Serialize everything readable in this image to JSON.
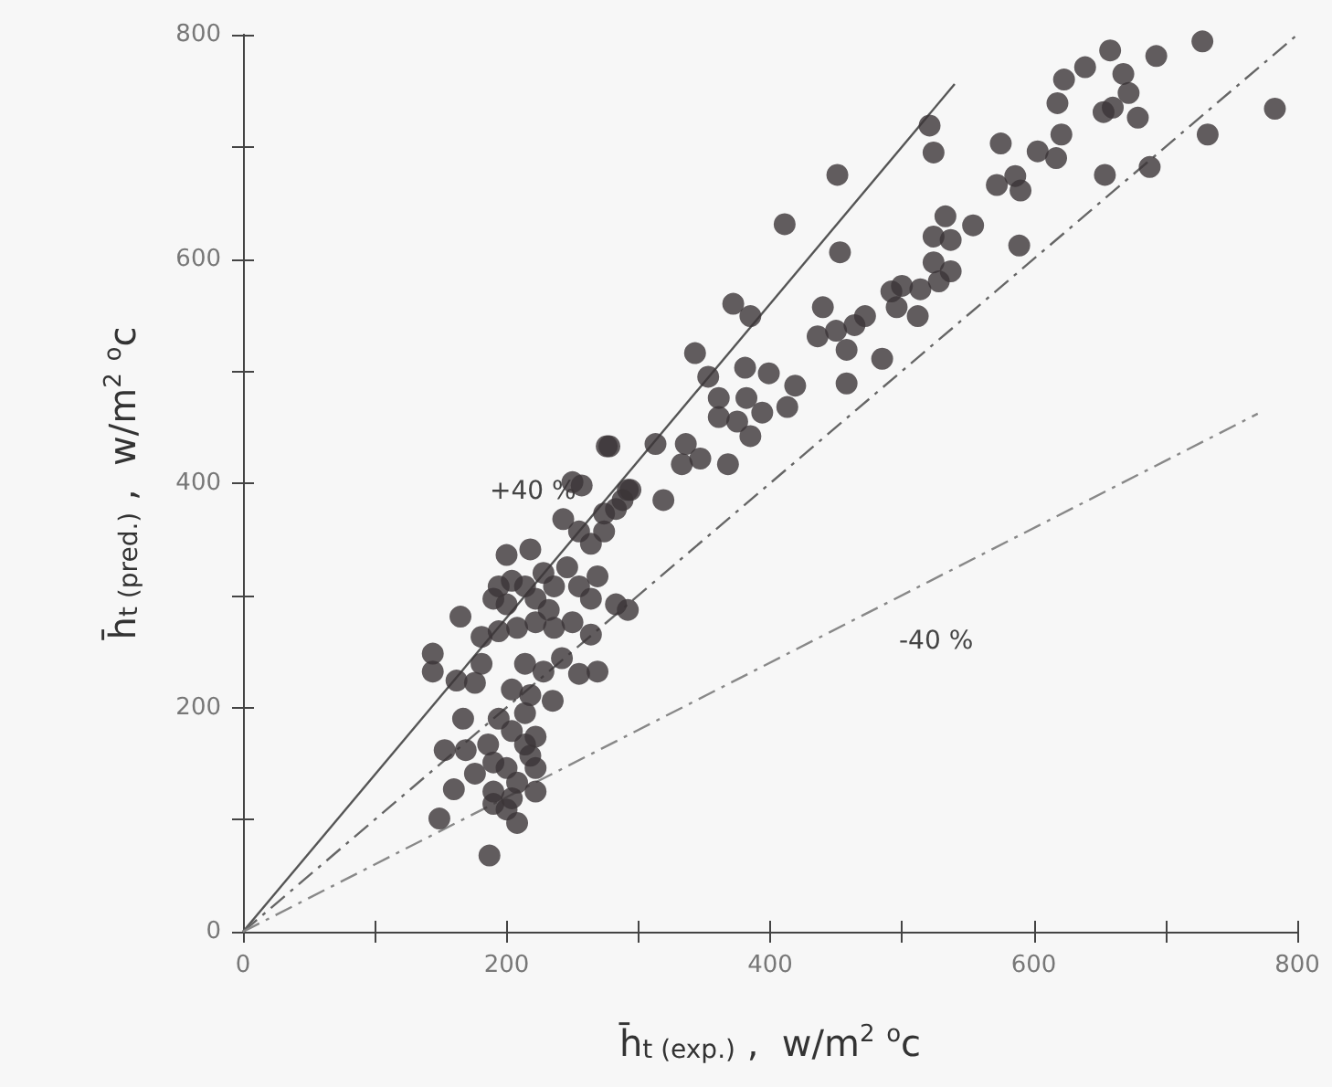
{
  "chart_data": {
    "type": "scatter",
    "xlabel": "h̄$_{t (exp.)}$ ,  w/m$^{2}$ $^{o}$c",
    "ylabel": "h̄$_{t (pred.)}$ ,  w/m$^{2}$ $^{o}$c",
    "xlim": [
      0,
      800
    ],
    "ylim": [
      0,
      800
    ],
    "xticks": [
      0,
      {
        "value": 100,
        "label": null
      },
      200,
      {
        "value": 300,
        "label": null
      },
      400,
      {
        "value": 500,
        "label": null
      },
      600,
      {
        "value": 700,
        "label": null
      },
      800
    ],
    "yticks": [
      0,
      {
        "value": 100,
        "label": null
      },
      200,
      {
        "value": 300,
        "label": null
      },
      400,
      {
        "value": 500,
        "label": null
      },
      600,
      {
        "value": 700,
        "label": null
      },
      800
    ],
    "annotations": [
      "+40 %",
      "-40 %"
    ],
    "series": [
      {
        "color": "#3b3537",
        "marker": "circle",
        "x": [
          276,
          250,
          257,
          243,
          274,
          288,
          294,
          255,
          264,
          274,
          200,
          218,
          194,
          204,
          214,
          228,
          236,
          246,
          269,
          190,
          200,
          222,
          232,
          255,
          264,
          165,
          181,
          194,
          208,
          222,
          236,
          250,
          264,
          283,
          292,
          144,
          144,
          162,
          176,
          181,
          214,
          228,
          242,
          255,
          269,
          204,
          218,
          214,
          235,
          167,
          194,
          204,
          214,
          222,
          153,
          169,
          186,
          190,
          200,
          218,
          222,
          160,
          176,
          190,
          208,
          222,
          149,
          190,
          200,
          208,
          204,
          187,
          521,
          524,
          575,
          572,
          451,
          411,
          453,
          533,
          554,
          524,
          537,
          524,
          537,
          528,
          514,
          500,
          492,
          496,
          512,
          440,
          436,
          450,
          464,
          472,
          458,
          485,
          458,
          372,
          385,
          343,
          353,
          381,
          399,
          419,
          413,
          361,
          382,
          394,
          375,
          385,
          361,
          313,
          336,
          347,
          333,
          368,
          319,
          278,
          292,
          283,
          658,
          693,
          728,
          639,
          623,
          668,
          672,
          618,
          653,
          660,
          679,
          783,
          732,
          688,
          654,
          603,
          621,
          617,
          586,
          590,
          589
        ],
        "values": [
          433,
          401,
          398,
          368,
          373,
          385,
          394,
          357,
          346,
          357,
          336,
          341,
          308,
          313,
          308,
          320,
          308,
          325,
          317,
          297,
          292,
          297,
          287,
          308,
          297,
          281,
          263,
          268,
          271,
          276,
          271,
          276,
          265,
          292,
          287,
          248,
          232,
          224,
          222,
          239,
          239,
          232,
          244,
          230,
          232,
          216,
          211,
          195,
          206,
          190,
          190,
          179,
          167,
          174,
          162,
          162,
          167,
          151,
          146,
          157,
          146,
          127,
          141,
          125,
          133,
          125,
          101,
          114,
          109,
          97,
          119,
          68,
          719,
          695,
          703,
          666,
          675,
          631,
          606,
          638,
          630,
          620,
          617,
          597,
          589,
          580,
          573,
          576,
          571,
          557,
          549,
          557,
          531,
          536,
          541,
          549,
          519,
          511,
          489,
          560,
          549,
          516,
          495,
          503,
          498,
          487,
          468,
          476,
          476,
          463,
          455,
          442,
          459,
          435,
          435,
          422,
          417,
          417,
          385,
          433,
          394,
          377,
          786,
          781,
          794,
          771,
          760,
          765,
          748,
          739,
          731,
          735,
          726,
          734,
          711,
          682,
          675,
          696,
          711,
          690,
          674,
          661,
          612
        ]
      },
      {
        "type": "line",
        "color": "#555555",
        "line_style": "solid",
        "marker": "none",
        "x": [
          0,
          540
        ],
        "values": [
          0,
          756
        ]
      },
      {
        "type": "line",
        "color": "#666666",
        "line_style": "dashed",
        "marker": "none",
        "x": [
          0,
          800
        ],
        "values": [
          0,
          800
        ]
      },
      {
        "type": "line",
        "color": "#888888",
        "line_style": "dashed",
        "marker": "none",
        "x": [
          0,
          770
        ],
        "values": [
          0,
          462
        ]
      }
    ]
  }
}
